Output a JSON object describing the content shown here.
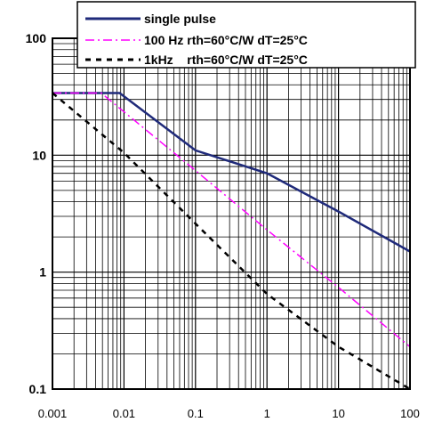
{
  "chart_data": {
    "type": "line",
    "x_scale": "log",
    "y_scale": "log",
    "xlim": [
      0.001,
      100
    ],
    "ylim": [
      0.1,
      100
    ],
    "grid": true,
    "x_ticks": [
      "0.001",
      "0.01",
      "0.1",
      "1",
      "10",
      "100"
    ],
    "y_ticks": [
      "0.1",
      "1",
      "10",
      "100"
    ],
    "legend_position": "top-right",
    "series": [
      {
        "name": "single pulse",
        "color": "#1f2a7a",
        "style": "solid",
        "x": [
          0.001,
          0.0087,
          0.1,
          1,
          10,
          100
        ],
        "y": [
          34,
          34,
          11,
          7,
          3.3,
          1.5
        ]
      },
      {
        "name": "100 Hz rth=60°C/W dT=25°C",
        "color": "#ff00ff",
        "style": "dashdot",
        "x": [
          0.001,
          0.0048,
          0.01,
          0.1,
          1,
          10,
          100
        ],
        "y": [
          34,
          34,
          23.5,
          7.4,
          2.3,
          0.74,
          0.23
        ]
      },
      {
        "name": "1kHz    rth=60°C/W dT=25°C",
        "color": "#000000",
        "style": "dashed",
        "x": [
          0.001,
          0.01,
          0.1,
          1,
          10,
          100
        ],
        "y": [
          34,
          10.5,
          2.6,
          0.65,
          0.23,
          0.08
        ]
      }
    ]
  }
}
